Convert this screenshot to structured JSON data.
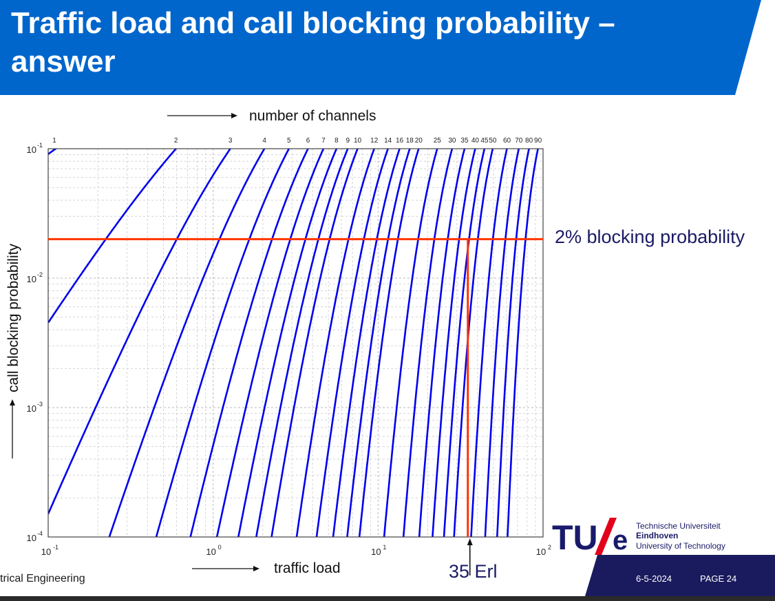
{
  "slide": {
    "title": "Traffic load and call blocking probability – answer",
    "footer_left": "trical Engineering",
    "date": "6-5-2024",
    "page": "PAGE 24",
    "colors": {
      "banner": "#0066cc",
      "footer_bar": "#1a1a5e",
      "curve": "#0000ee",
      "marker": "#ff3300",
      "text_dark": "#1a1a66"
    }
  },
  "logo": {
    "mark_tu": "TU",
    "mark_e": "e",
    "line1": "Technische Universiteit",
    "line2": "Eindhoven",
    "line3": "University of Technology",
    "colors": {
      "mark": "#1a1a6b",
      "slash": "#e3001b"
    }
  },
  "chart_data": {
    "type": "line",
    "title": "",
    "top_axis_label": "number of channels",
    "xlabel": "traffic load",
    "ylabel": "call blocking probability",
    "x_scale": "log",
    "y_scale": "log",
    "xlim": [
      0.1,
      100
    ],
    "ylim": [
      0.0001,
      0.1
    ],
    "x_ticks": [
      {
        "value": 0.1,
        "base": "10",
        "exp": "-1"
      },
      {
        "value": 1,
        "base": "10",
        "exp": "0"
      },
      {
        "value": 10,
        "base": "10",
        "exp": "1"
      },
      {
        "value": 100,
        "base": "10",
        "exp": "2"
      }
    ],
    "y_ticks": [
      {
        "value": 0.1,
        "base": "10",
        "exp": "-1"
      },
      {
        "value": 0.01,
        "base": "10",
        "exp": "-2"
      },
      {
        "value": 0.001,
        "base": "10",
        "exp": "-3"
      },
      {
        "value": 0.0001,
        "base": "10",
        "exp": "-4"
      }
    ],
    "grid": true,
    "curve_family": "Erlang B, one curve per number of channels",
    "channels": [
      1,
      2,
      3,
      4,
      5,
      6,
      7,
      8,
      9,
      10,
      12,
      14,
      16,
      18,
      20,
      25,
      30,
      35,
      40,
      45,
      50,
      60,
      70,
      80,
      90
    ],
    "channel_labels": [
      "1",
      "2",
      "3",
      "4",
      "5",
      "6",
      "7",
      "8",
      "9",
      "10",
      "12",
      "14",
      "16",
      "18",
      "20",
      "25",
      "30",
      "35",
      "40",
      "45",
      "50",
      "60",
      "70",
      "80",
      "90"
    ],
    "annotations": {
      "blocking_level": {
        "y": 0.02,
        "label": "2% blocking probability"
      },
      "load_marker": {
        "x": 35,
        "label": "35 Erl"
      }
    }
  }
}
